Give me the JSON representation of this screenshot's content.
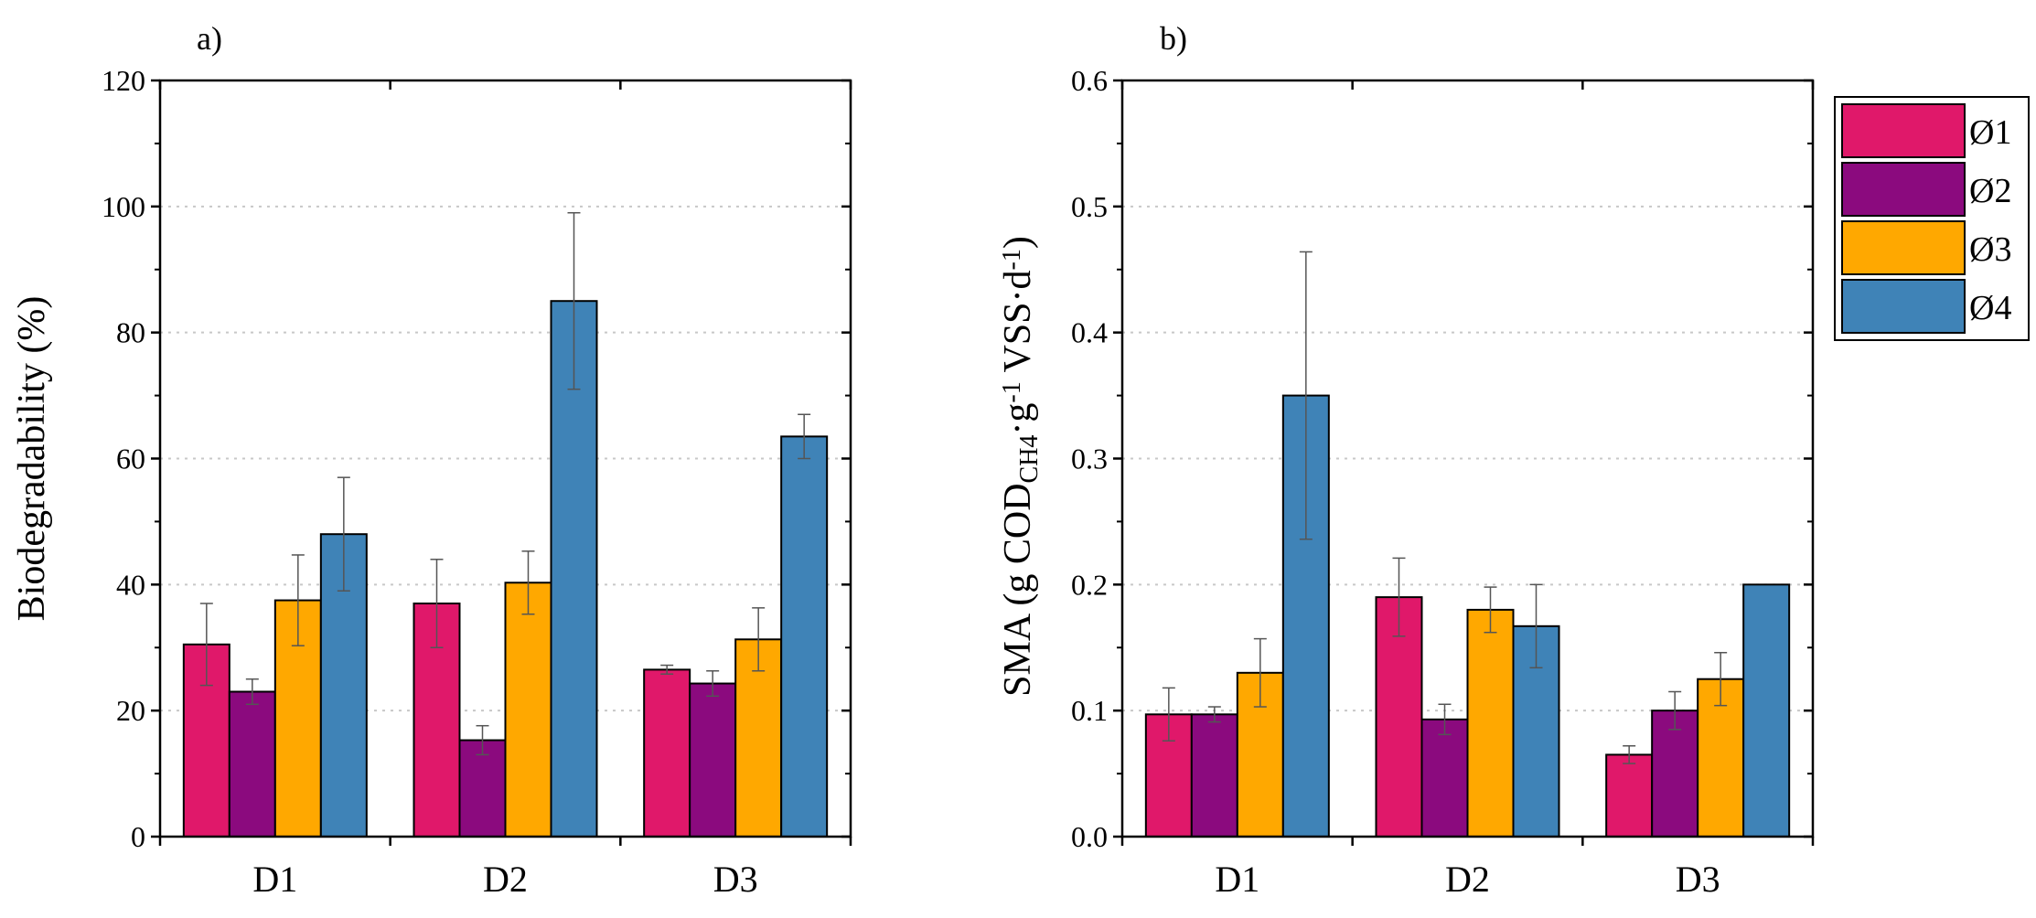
{
  "figure": {
    "panels": [
      {
        "panel_label": "a)",
        "ylabel": "Biodegradability (%)"
      },
      {
        "panel_label": "b)",
        "ylabel_parts": {
          "p1": "SMA (g COD",
          "sub1": "CH4",
          "p2": "·g",
          "sup1": "-1",
          "p3": " VSS·d",
          "sup2": "-1",
          "p4": ")"
        }
      }
    ],
    "legend": [
      "Ø1",
      "Ø2",
      "Ø3",
      "Ø4"
    ]
  },
  "chart_data": [
    {
      "type": "bar",
      "title": "",
      "panel_label": "a)",
      "xlabel": "",
      "ylabel": "Biodegradability (%)",
      "categories": [
        "D1",
        "D2",
        "D3"
      ],
      "ylim": [
        0,
        120
      ],
      "yticks": [
        "0",
        "20",
        "40",
        "60",
        "80",
        "100",
        "120"
      ],
      "grid": "horizontal dotted",
      "series": [
        {
          "name": "Ø1",
          "color": "#E0186A",
          "values": [
            30.5,
            37.0,
            26.5
          ],
          "errors": [
            6.5,
            7.0,
            0.7
          ]
        },
        {
          "name": "Ø2",
          "color": "#8B0A7E",
          "values": [
            23.0,
            15.3,
            24.3
          ],
          "errors": [
            2.0,
            2.3,
            2.0
          ]
        },
        {
          "name": "Ø3",
          "color": "#FFA800",
          "values": [
            37.5,
            40.3,
            31.3
          ],
          "errors": [
            7.2,
            5.0,
            5.0
          ]
        },
        {
          "name": "Ø4",
          "color": "#3F83B7",
          "values": [
            48.0,
            85.0,
            63.5
          ],
          "errors": [
            9.0,
            14.0,
            3.5
          ]
        }
      ]
    },
    {
      "type": "bar",
      "title": "",
      "panel_label": "b)",
      "xlabel": "",
      "ylabel": "SMA (g COD CH4 ·g -1 VSS·d -1 )",
      "categories": [
        "D1",
        "D2",
        "D3"
      ],
      "ylim": [
        0,
        0.6
      ],
      "yticks": [
        "0.0",
        "0.1",
        "0.2",
        "0.3",
        "0.4",
        "0.5",
        "0.6"
      ],
      "grid": "horizontal dotted",
      "legend_position": "outside top-right",
      "series": [
        {
          "name": "Ø1",
          "color": "#E0186A",
          "values": [
            0.097,
            0.19,
            0.065
          ],
          "errors": [
            0.021,
            0.031,
            0.007
          ]
        },
        {
          "name": "Ø2",
          "color": "#8B0A7E",
          "values": [
            0.097,
            0.093,
            0.1
          ],
          "errors": [
            0.006,
            0.012,
            0.015
          ]
        },
        {
          "name": "Ø3",
          "color": "#FFA800",
          "values": [
            0.13,
            0.18,
            0.125
          ],
          "errors": [
            0.027,
            0.018,
            0.021
          ]
        },
        {
          "name": "Ø4",
          "color": "#3F83B7",
          "values": [
            0.35,
            0.167,
            0.2
          ],
          "errors": [
            0.114,
            0.033,
            0.0
          ]
        }
      ]
    }
  ]
}
